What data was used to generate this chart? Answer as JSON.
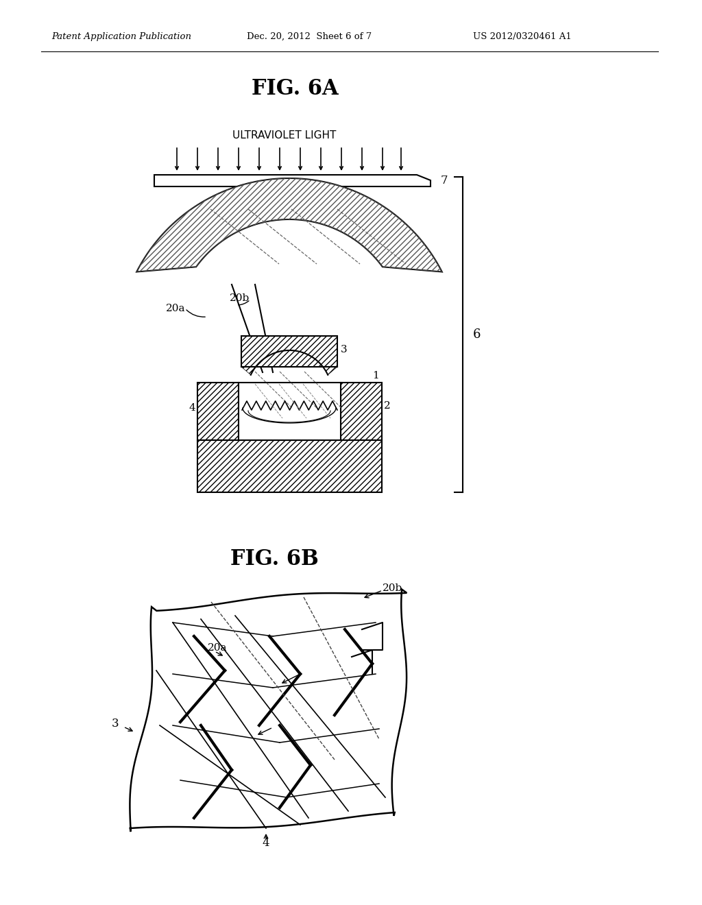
{
  "title_left": "Patent Application Publication",
  "title_center": "Dec. 20, 2012  Sheet 6 of 7",
  "title_right": "US 2012/0320461 A1",
  "fig6a_label": "FIG. 6A",
  "fig6b_label": "FIG. 6B",
  "uv_label": "ULTRAVIOLET LIGHT",
  "bg_color": "#ffffff",
  "line_color": "#000000"
}
